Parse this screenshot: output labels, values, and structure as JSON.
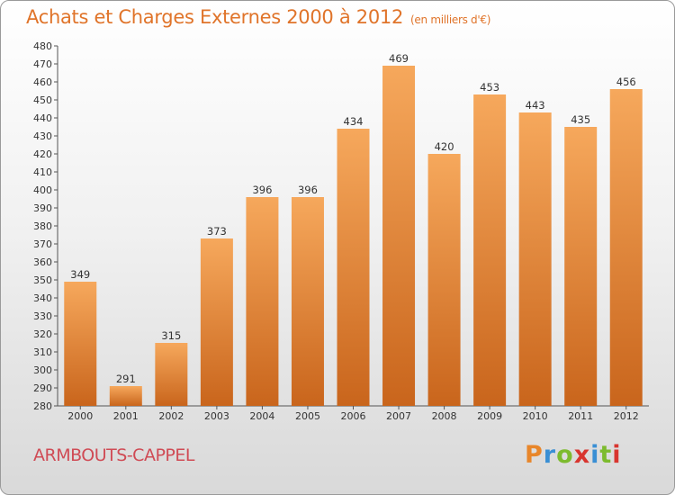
{
  "title": "Achats et Charges Externes 2000 à 2012",
  "subtitle": "(en milliers d'€)",
  "commune": "ARMBOUTS-CAPPEL",
  "logo": {
    "letters": [
      "P",
      "r",
      "o",
      "x",
      "i",
      "t",
      "i"
    ],
    "colors": [
      "#e8862a",
      "#3a8fd4",
      "#7dbb2e",
      "#d8352f",
      "#3a8fd4",
      "#7dbb2e",
      "#d8352f"
    ]
  },
  "colors": {
    "bar_top": "#f6a85c",
    "bar_bottom": "#c9651c",
    "title": "#e0742a",
    "commune": "#d04b55"
  },
  "chart_data": {
    "type": "bar",
    "categories": [
      "2000",
      "2001",
      "2002",
      "2003",
      "2004",
      "2005",
      "2006",
      "2007",
      "2008",
      "2009",
      "2010",
      "2011",
      "2012"
    ],
    "values": [
      349,
      291,
      315,
      373,
      396,
      396,
      434,
      469,
      420,
      453,
      443,
      435,
      456
    ],
    "ylim": [
      280,
      480
    ],
    "yticks": [
      280,
      290,
      300,
      310,
      320,
      330,
      340,
      350,
      360,
      370,
      380,
      390,
      400,
      410,
      420,
      430,
      440,
      450,
      460,
      470,
      480
    ],
    "grid": false
  }
}
